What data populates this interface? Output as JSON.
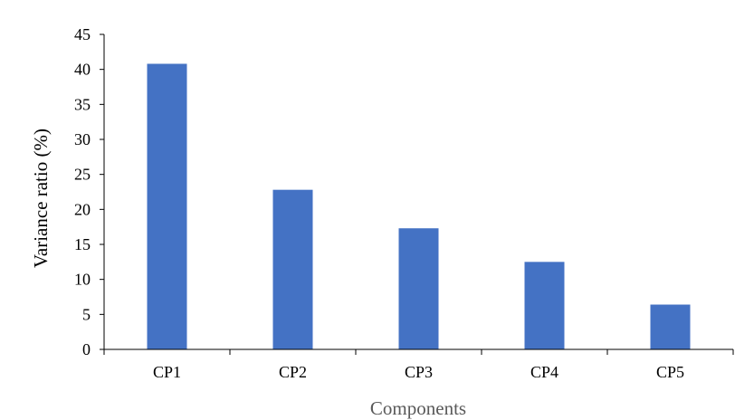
{
  "chart_data": {
    "type": "bar",
    "categories": [
      "CP1",
      "CP2",
      "CP3",
      "CP4",
      "CP5"
    ],
    "values": [
      40.8,
      22.8,
      17.3,
      12.5,
      6.4
    ],
    "title": "",
    "xlabel": "Components",
    "ylabel": "Variance ratio (%)",
    "ylim": [
      0,
      45
    ],
    "yticks": [
      0,
      5,
      10,
      15,
      20,
      25,
      30,
      35,
      40,
      45
    ],
    "grid": false,
    "legend": "none",
    "bar_color": "#4472c4",
    "axis_color": "#000000",
    "xlabel_color": "#595959",
    "ylabel_color": "#000000"
  }
}
